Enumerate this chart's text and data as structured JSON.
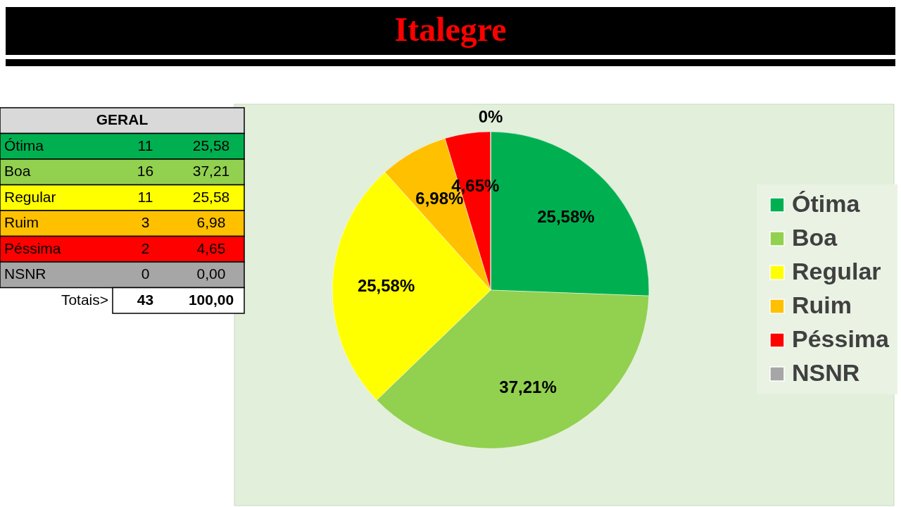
{
  "chart_data": {
    "type": "pie",
    "title": "Italegre",
    "categories": [
      "Ótima",
      "Boa",
      "Regular",
      "Ruim",
      "Péssima",
      "NSNR"
    ],
    "values": [
      25.58,
      37.21,
      25.58,
      6.98,
      4.65,
      0
    ],
    "colors": [
      "#00b050",
      "#92d050",
      "#ffff00",
      "#ffc000",
      "#ff0000",
      "#a6a6a6"
    ],
    "value_labels": [
      "25,58%",
      "37,21%",
      "25,58%",
      "6,98%",
      "4,65%",
      "0%"
    ],
    "legend": "right",
    "annotations": [
      "GERAL",
      "11",
      "16",
      "11",
      "3",
      "2",
      "0",
      "25,58",
      "37,21",
      "25,58",
      "6,98",
      "4,65",
      "0,00",
      "Totais>",
      "43",
      "100,00"
    ]
  }
}
